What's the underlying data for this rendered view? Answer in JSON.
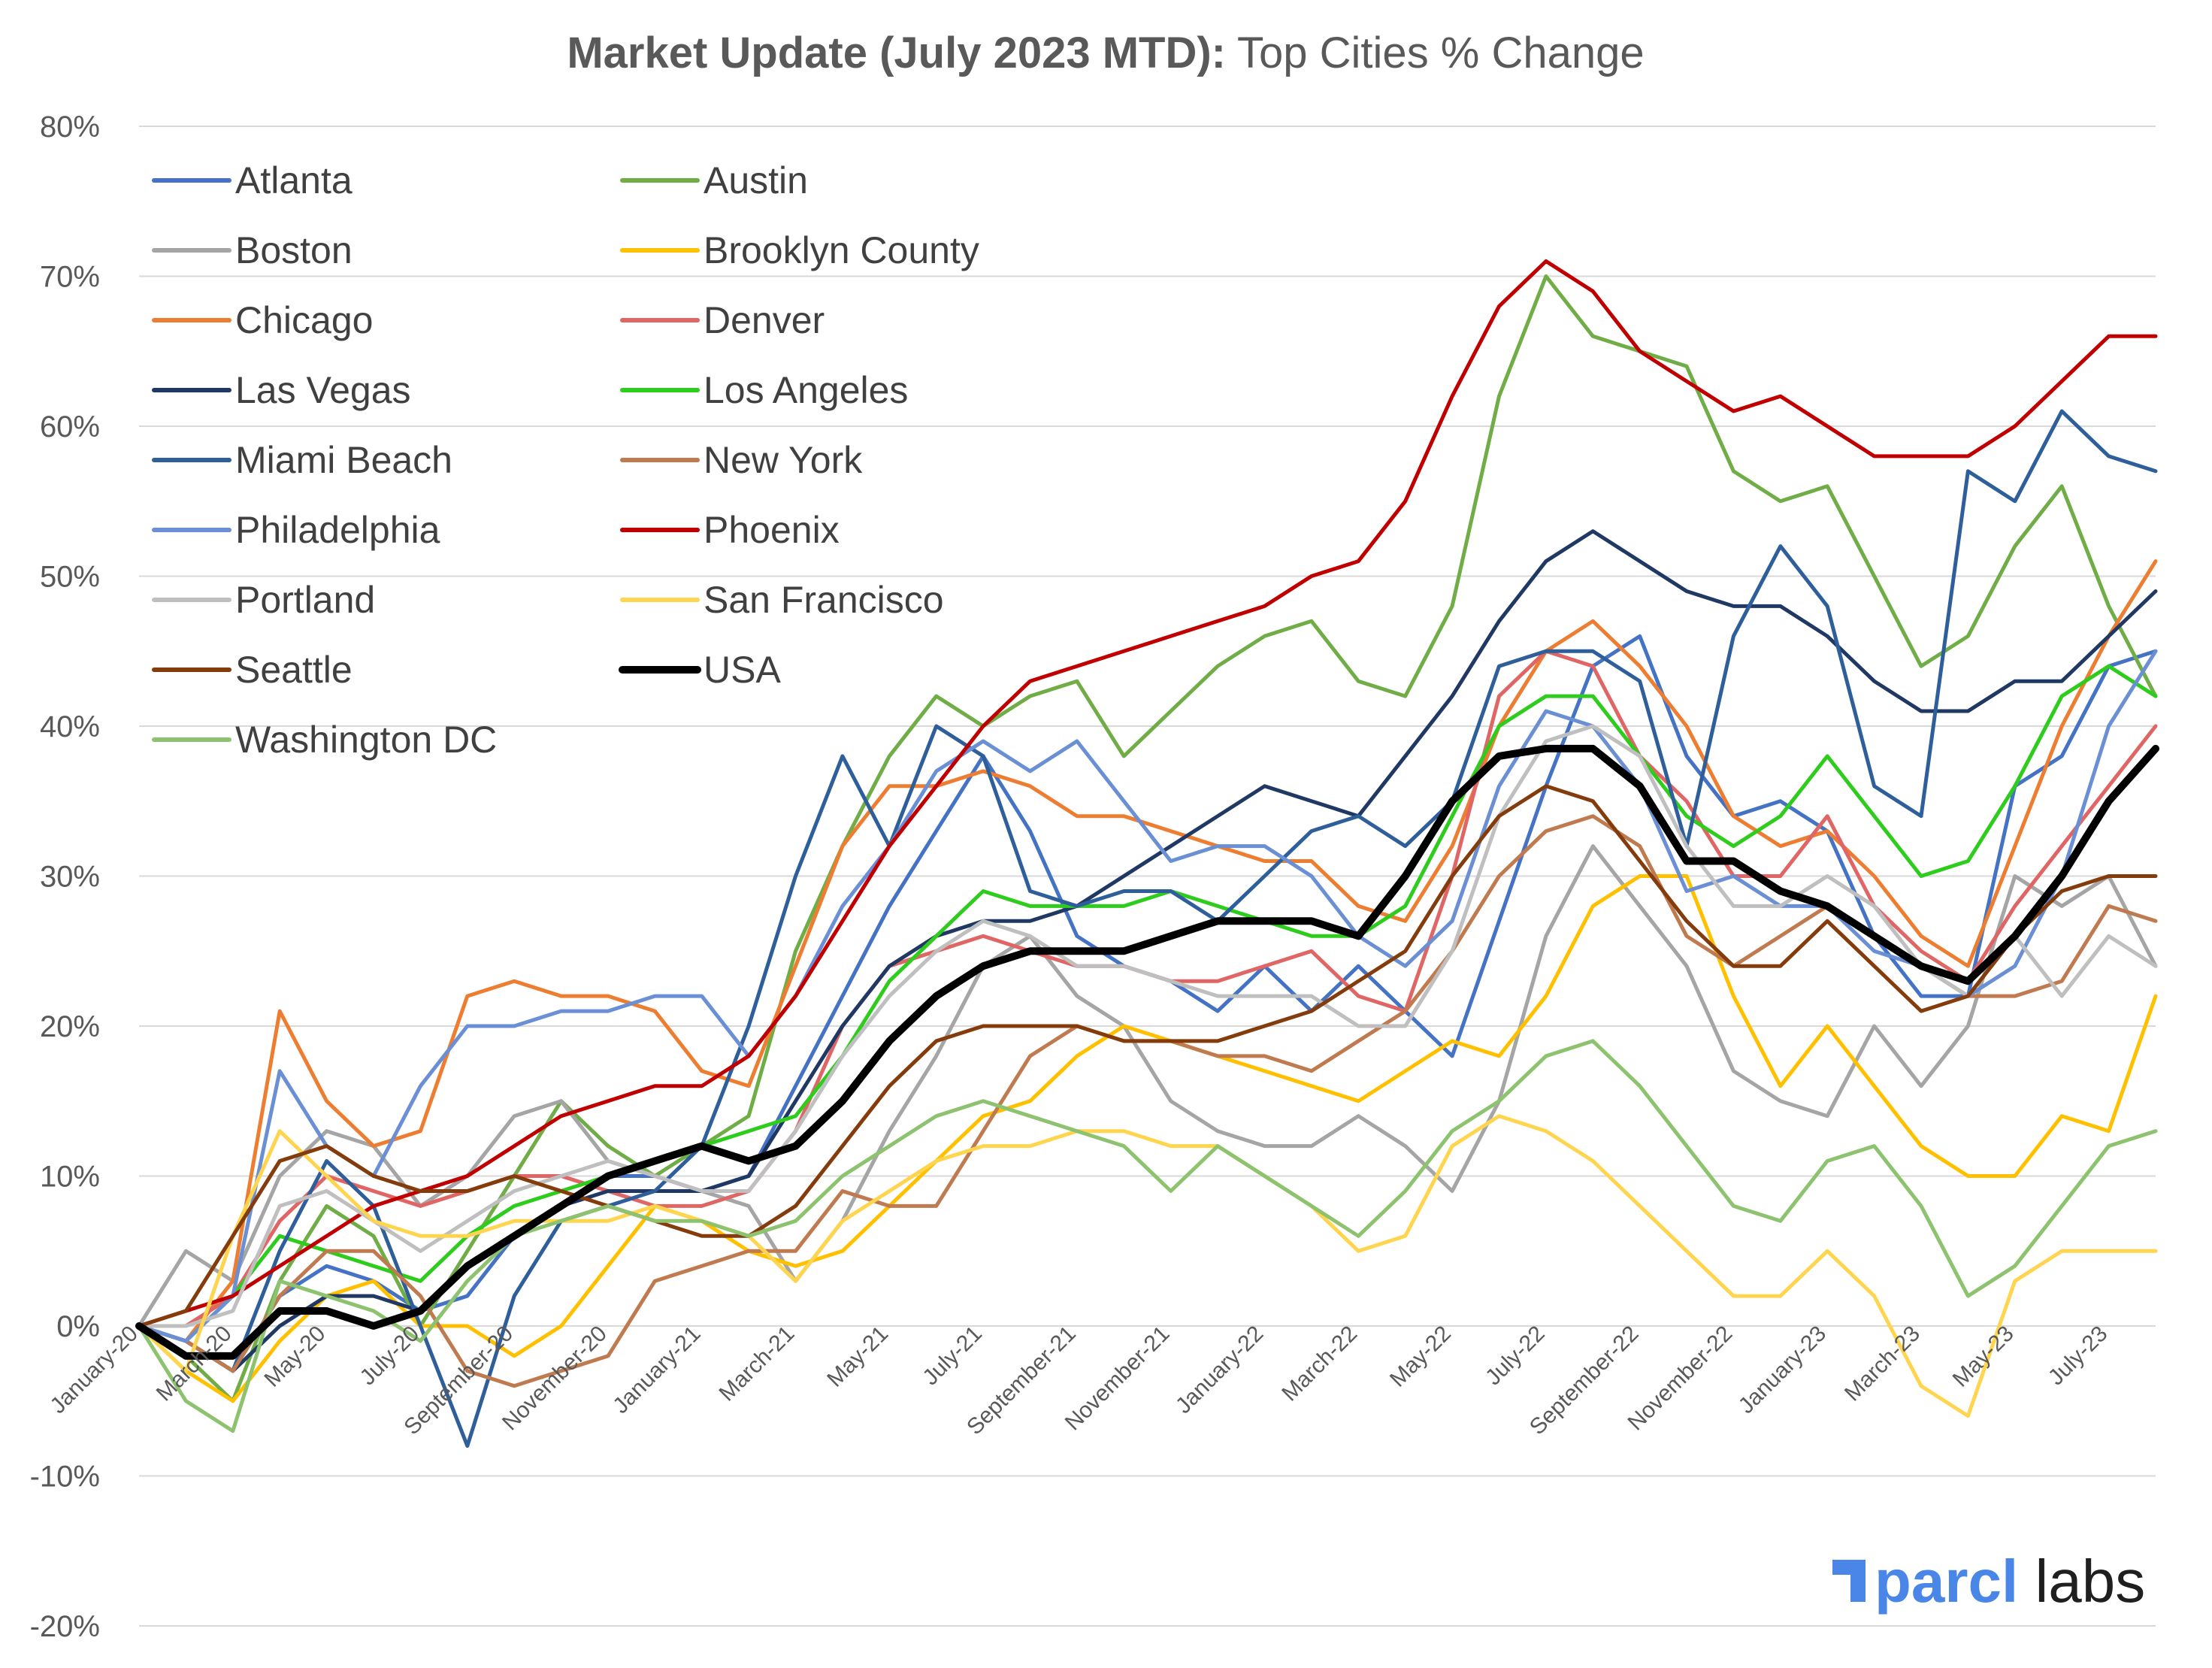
{
  "chart_data": {
    "type": "line",
    "title_bold": "Market Update (July 2023 MTD):",
    "title_rest": " Top Cities % Change",
    "xlabel": "",
    "ylabel": "",
    "ylim": [
      -20,
      80
    ],
    "y_ticks": [
      -20,
      -10,
      0,
      10,
      20,
      30,
      40,
      50,
      60,
      70,
      80
    ],
    "y_tick_labels": [
      "-20%",
      "-10%",
      "0%",
      "10%",
      "20%",
      "30%",
      "40%",
      "50%",
      "60%",
      "70%",
      "80%"
    ],
    "x_range": [
      0,
      43
    ],
    "x_ticks": [
      0,
      2,
      4,
      6,
      8,
      10,
      12,
      14,
      16,
      18,
      20,
      22,
      24,
      26,
      28,
      30,
      32,
      34,
      36,
      38,
      40,
      42
    ],
    "x_tick_labels": [
      "January-20",
      "March-20",
      "May-20",
      "July-20",
      "September-20",
      "November-20",
      "January-21",
      "March-21",
      "May-21",
      "July-21",
      "September-21",
      "November-21",
      "January-22",
      "March-22",
      "May-22",
      "July-22",
      "September-22",
      "November-22",
      "January-23",
      "March-23",
      "May-23",
      "July-23"
    ],
    "x": [
      0,
      1,
      2,
      3,
      4,
      5,
      6,
      7,
      8,
      9,
      10,
      11,
      12,
      13,
      14,
      15,
      16,
      17,
      18,
      19,
      20,
      21,
      22,
      23,
      24,
      25,
      26,
      27,
      28,
      29,
      30,
      31,
      32,
      33,
      34,
      35,
      36,
      37,
      38,
      39,
      40,
      41,
      42,
      43
    ],
    "grid": true,
    "legend_position": "top-left",
    "series": [
      {
        "name": "Atlanta",
        "color": "#4472C4",
        "width": 5,
        "values": [
          0,
          -1,
          -3,
          2,
          4,
          3,
          1,
          2,
          6,
          8,
          10,
          10,
          9,
          10,
          16,
          22,
          28,
          33,
          38,
          33,
          26,
          24,
          23,
          21,
          24,
          21,
          24,
          21,
          18,
          27,
          36,
          44,
          46,
          38,
          34,
          35,
          33,
          26,
          22,
          22,
          36,
          38,
          44,
          45
        ]
      },
      {
        "name": "Austin",
        "color": "#70AD47",
        "width": 5,
        "values": [
          0,
          -2,
          -5,
          3,
          8,
          6,
          0,
          5,
          10,
          15,
          12,
          10,
          12,
          14,
          25,
          32,
          38,
          42,
          40,
          42,
          43,
          38,
          41,
          44,
          46,
          47,
          43,
          42,
          48,
          62,
          70,
          66,
          65,
          64,
          57,
          55,
          56,
          50,
          44,
          46,
          52,
          56,
          48,
          42
        ]
      },
      {
        "name": "Boston",
        "color": "#A5A5A5",
        "width": 5,
        "values": [
          0,
          5,
          3,
          10,
          13,
          12,
          8,
          10,
          14,
          15,
          11,
          10,
          9,
          8,
          3,
          7,
          13,
          18,
          24,
          26,
          22,
          20,
          15,
          13,
          12,
          12,
          14,
          12,
          9,
          15,
          26,
          32,
          28,
          24,
          17,
          15,
          14,
          20,
          16,
          20,
          30,
          28,
          30,
          24
        ]
      },
      {
        "name": "Brooklyn County",
        "color": "#FFC000",
        "width": 5,
        "values": [
          0,
          -3,
          -5,
          -1,
          2,
          3,
          0,
          0,
          -2,
          0,
          4,
          8,
          7,
          5,
          4,
          5,
          8,
          11,
          14,
          15,
          18,
          20,
          19,
          18,
          17,
          16,
          15,
          17,
          19,
          18,
          22,
          28,
          30,
          30,
          22,
          16,
          20,
          16,
          12,
          10,
          10,
          14,
          13,
          22
        ]
      },
      {
        "name": "Chicago",
        "color": "#ED7D31",
        "width": 5,
        "values": [
          0,
          -1,
          3,
          21,
          15,
          12,
          13,
          22,
          23,
          22,
          22,
          21,
          17,
          16,
          24,
          32,
          36,
          36,
          37,
          36,
          34,
          34,
          33,
          32,
          31,
          31,
          28,
          27,
          32,
          40,
          45,
          47,
          44,
          40,
          34,
          32,
          33,
          30,
          26,
          24,
          32,
          40,
          46,
          51
        ]
      },
      {
        "name": "Denver",
        "color": "#E06666",
        "width": 5,
        "values": [
          0,
          0,
          2,
          7,
          10,
          9,
          8,
          9,
          10,
          10,
          9,
          8,
          8,
          9,
          13,
          20,
          24,
          25,
          26,
          25,
          24,
          24,
          23,
          23,
          24,
          25,
          22,
          21,
          30,
          42,
          45,
          44,
          38,
          35,
          30,
          30,
          34,
          28,
          25,
          23,
          28,
          32,
          36,
          40
        ]
      },
      {
        "name": "Las Vegas",
        "color": "#203864",
        "width": 5,
        "values": [
          0,
          -1,
          -3,
          0,
          2,
          2,
          1,
          4,
          6,
          8,
          9,
          9,
          9,
          10,
          15,
          20,
          24,
          26,
          27,
          27,
          28,
          30,
          32,
          34,
          36,
          35,
          34,
          38,
          42,
          47,
          51,
          53,
          51,
          49,
          48,
          48,
          46,
          43,
          41,
          41,
          43,
          43,
          46,
          49
        ]
      },
      {
        "name": "Los Angeles",
        "color": "#2ECC1C",
        "width": 5,
        "values": [
          0,
          -1,
          2,
          6,
          5,
          4,
          3,
          6,
          8,
          9,
          10,
          11,
          12,
          13,
          14,
          18,
          23,
          26,
          29,
          28,
          28,
          28,
          29,
          28,
          27,
          26,
          26,
          28,
          34,
          40,
          42,
          42,
          38,
          34,
          32,
          34,
          38,
          34,
          30,
          31,
          36,
          42,
          44,
          42
        ]
      },
      {
        "name": "Miami Beach",
        "color": "#2E5F9A",
        "width": 5,
        "values": [
          0,
          -1,
          -3,
          5,
          11,
          8,
          0,
          -8,
          2,
          7,
          8,
          9,
          12,
          20,
          30,
          38,
          32,
          40,
          38,
          29,
          28,
          29,
          29,
          27,
          30,
          33,
          34,
          32,
          35,
          44,
          45,
          45,
          43,
          32,
          46,
          52,
          48,
          36,
          34,
          57,
          55,
          61,
          58,
          57
        ]
      },
      {
        "name": "New York",
        "color": "#C07A50",
        "width": 5,
        "values": [
          0,
          -1,
          -3,
          2,
          5,
          5,
          2,
          -3,
          -4,
          -3,
          -2,
          3,
          4,
          5,
          5,
          9,
          8,
          8,
          13,
          18,
          20,
          19,
          19,
          18,
          18,
          17,
          19,
          21,
          25,
          30,
          33,
          34,
          32,
          26,
          24,
          26,
          28,
          26,
          24,
          22,
          22,
          23,
          28,
          27
        ]
      },
      {
        "name": "Philadelphia",
        "color": "#6A8FD4",
        "width": 5,
        "values": [
          0,
          -1,
          2,
          17,
          12,
          10,
          16,
          20,
          20,
          21,
          21,
          22,
          22,
          18,
          22,
          28,
          32,
          37,
          39,
          37,
          39,
          35,
          31,
          32,
          32,
          30,
          26,
          24,
          27,
          36,
          41,
          40,
          36,
          29,
          30,
          28,
          28,
          25,
          24,
          22,
          24,
          30,
          40,
          45
        ]
      },
      {
        "name": "Phoenix",
        "color": "#C00000",
        "width": 5,
        "values": [
          0,
          1,
          2,
          4,
          6,
          8,
          9,
          10,
          12,
          14,
          15,
          16,
          16,
          18,
          22,
          27,
          32,
          36,
          40,
          43,
          44,
          45,
          46,
          47,
          48,
          50,
          51,
          55,
          62,
          68,
          71,
          69,
          65,
          63,
          61,
          62,
          60,
          58,
          58,
          58,
          60,
          63,
          66,
          66
        ]
      },
      {
        "name": "Portland",
        "color": "#BFBFBF",
        "width": 5,
        "values": [
          0,
          0,
          1,
          8,
          9,
          7,
          5,
          7,
          9,
          10,
          11,
          10,
          9,
          9,
          13,
          18,
          22,
          25,
          27,
          26,
          24,
          24,
          23,
          22,
          22,
          22,
          20,
          20,
          25,
          34,
          39,
          40,
          38,
          32,
          28,
          28,
          30,
          28,
          24,
          22,
          26,
          22,
          26,
          24
        ]
      },
      {
        "name": "San Francisco",
        "color": "#FFD54F",
        "width": 5,
        "values": [
          0,
          -3,
          6,
          13,
          10,
          7,
          6,
          6,
          7,
          7,
          7,
          8,
          7,
          6,
          3,
          7,
          9,
          11,
          12,
          12,
          13,
          13,
          12,
          12,
          10,
          8,
          5,
          6,
          12,
          14,
          13,
          11,
          8,
          5,
          2,
          2,
          5,
          2,
          -4,
          -6,
          3,
          5,
          5,
          5
        ]
      },
      {
        "name": "Seattle",
        "color": "#843C0C",
        "width": 5,
        "values": [
          0,
          1,
          6,
          11,
          12,
          10,
          9,
          9,
          10,
          9,
          8,
          7,
          6,
          6,
          8,
          12,
          16,
          19,
          20,
          20,
          20,
          19,
          19,
          19,
          20,
          21,
          23,
          25,
          30,
          34,
          36,
          35,
          31,
          27,
          24,
          24,
          27,
          24,
          21,
          22,
          26,
          29,
          30,
          30
        ]
      },
      {
        "name": "USA",
        "color": "#000000",
        "width": 10,
        "values": [
          0,
          -2,
          -2,
          1,
          1,
          0,
          1,
          4,
          6,
          8,
          10,
          11,
          12,
          11,
          12,
          15,
          19,
          22,
          24,
          25,
          25,
          25,
          26,
          27,
          27,
          27,
          26,
          30,
          35,
          38,
          38.5,
          38.5,
          36,
          31,
          31,
          29,
          28,
          26,
          24,
          23,
          26,
          30,
          35,
          38.5
        ]
      },
      {
        "name": "Washington DC",
        "color": "#8DC26F",
        "width": 5,
        "values": [
          0,
          -5,
          -7,
          3,
          2,
          1,
          -1,
          3,
          6,
          7,
          8,
          7,
          7,
          6,
          7,
          10,
          12,
          14,
          15,
          14,
          13,
          12,
          9,
          12,
          10,
          8,
          6,
          9,
          13,
          15,
          18,
          19,
          16,
          12,
          8,
          7,
          11,
          12,
          8,
          2,
          4,
          8,
          12,
          13
        ]
      }
    ]
  },
  "legend": {
    "title": ""
  },
  "logo": {
    "text_bold": "parcl",
    "text_rest": " labs",
    "color": "#4A86E8",
    "text_color": "#1F1F1F"
  }
}
